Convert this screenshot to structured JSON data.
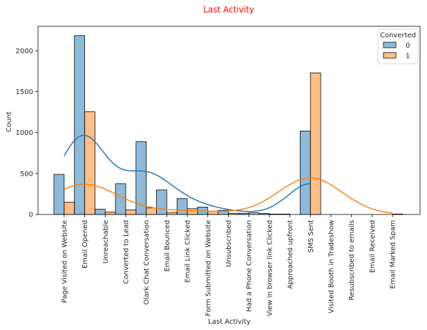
{
  "chart_data": {
    "type": "bar",
    "title": "Last Activity",
    "title_color": "#ff0000",
    "xlabel": "Last Activity",
    "ylabel": "Count",
    "ylim": [
      0,
      2300
    ],
    "yticks": [
      0,
      500,
      1000,
      1500,
      2000
    ],
    "grid": false,
    "legend": {
      "title": "Converted",
      "placement": "top-right"
    },
    "categories": [
      "Page Visited on Website",
      "Email Opened",
      "Unreachable",
      "Converted to Lead",
      "Olark Chat Conversation",
      "Email Bounced",
      "Email Link Clicked",
      "Form Submitted on Website",
      "Unsubscribed",
      "Had a Phone Conversation",
      "View in browser link Clicked",
      "Approached upfront",
      "SMS Sent",
      "Visited Booth in Tradeshow",
      "Resubscribed to emails",
      "Email Received",
      "Email Marked Spam"
    ],
    "series": [
      {
        "name": "0",
        "color": "#1f77b4",
        "values": [
          490,
          2185,
          65,
          375,
          890,
          300,
          195,
          90,
          50,
          15,
          12,
          5,
          1020,
          0,
          0,
          0,
          0
        ]
      },
      {
        "name": "1",
        "color": "#ff7f0e",
        "values": [
          150,
          1255,
          30,
          55,
          80,
          25,
          70,
          40,
          15,
          20,
          5,
          0,
          1730,
          0,
          0,
          0,
          5
        ]
      }
    ],
    "kde_curves": true
  }
}
